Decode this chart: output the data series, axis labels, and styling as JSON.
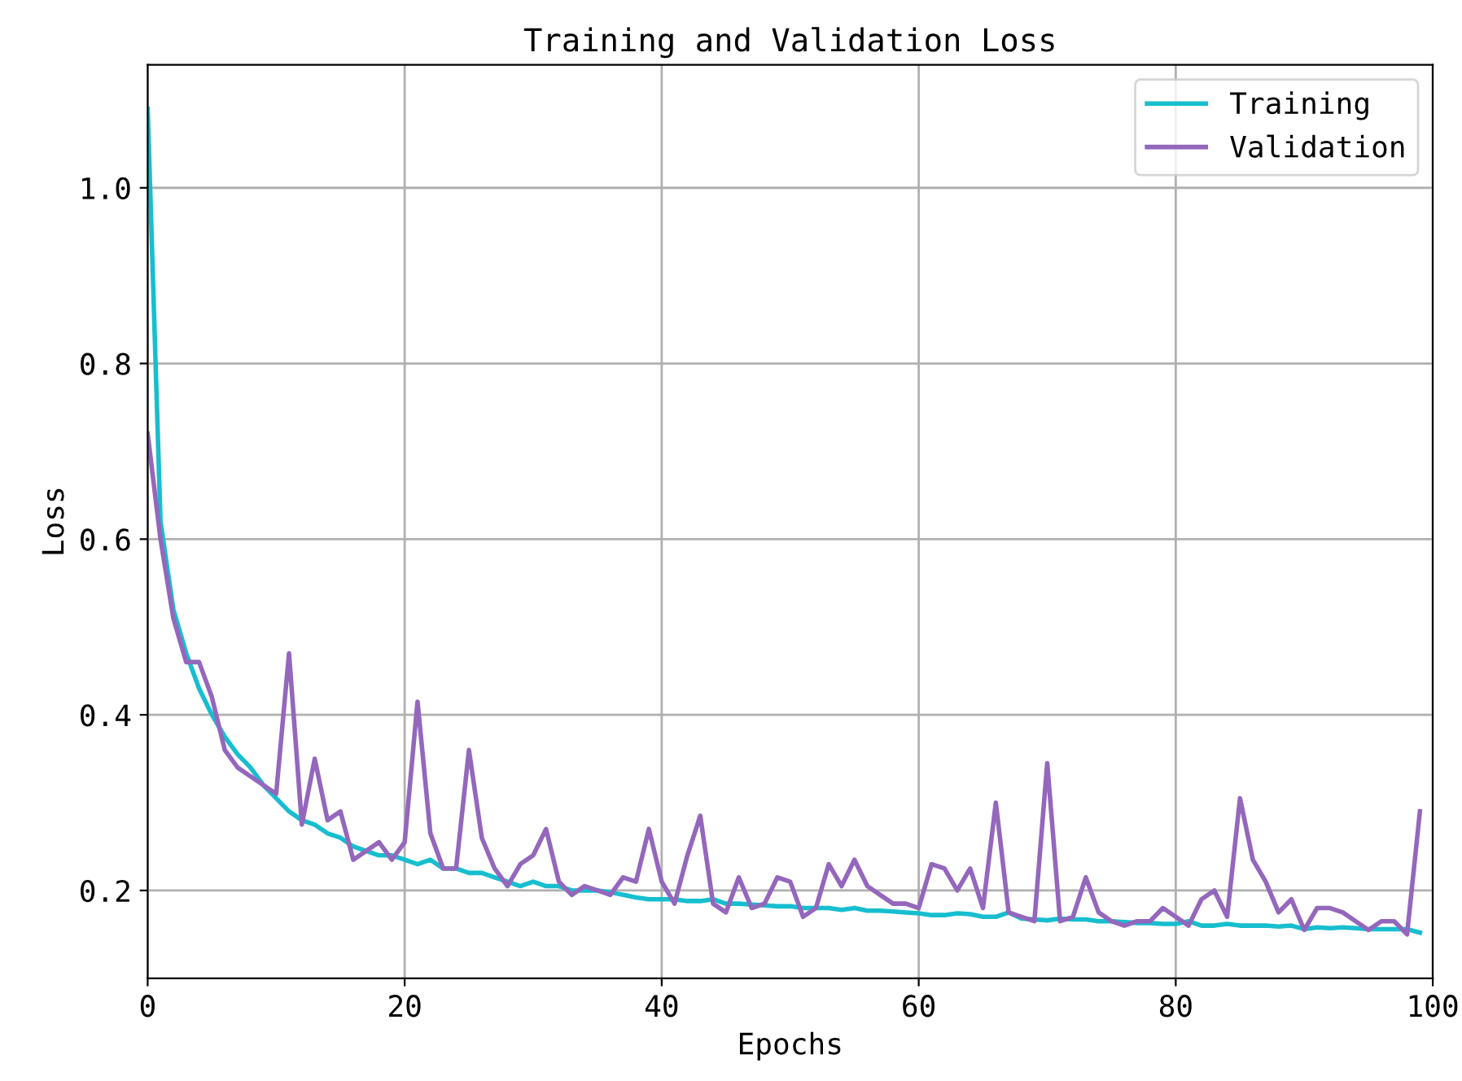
{
  "chart_data": {
    "type": "line",
    "title": "Training and Validation Loss",
    "xlabel": "Epochs",
    "ylabel": "Loss",
    "xlim": [
      0,
      100
    ],
    "xticks": [
      0,
      20,
      40,
      60,
      80,
      100
    ],
    "ylim": [
      0.1,
      1.14
    ],
    "yticks": [
      0.2,
      0.4,
      0.6,
      0.8,
      {
        "value": 1,
        "label": "1.0"
      }
    ],
    "x": [
      0,
      1,
      2,
      3,
      4,
      5,
      6,
      7,
      8,
      9,
      10,
      11,
      12,
      13,
      14,
      15,
      16,
      17,
      18,
      19,
      20,
      21,
      22,
      23,
      24,
      25,
      26,
      27,
      28,
      29,
      30,
      31,
      32,
      33,
      34,
      35,
      36,
      37,
      38,
      39,
      40,
      41,
      42,
      43,
      44,
      45,
      46,
      47,
      48,
      49,
      50,
      51,
      52,
      53,
      54,
      55,
      56,
      57,
      58,
      59,
      60,
      61,
      62,
      63,
      64,
      65,
      66,
      67,
      68,
      69,
      70,
      71,
      72,
      73,
      74,
      75,
      76,
      77,
      78,
      79,
      80,
      81,
      82,
      83,
      84,
      85,
      86,
      87,
      88,
      89,
      90,
      91,
      92,
      93,
      94,
      95,
      96,
      97,
      98,
      99
    ],
    "grid": true,
    "legend": "top right",
    "series": [
      {
        "name": "Training",
        "color": "#17becf",
        "values": [
          1.09,
          0.62,
          0.52,
          0.47,
          0.43,
          0.4,
          0.375,
          0.355,
          0.34,
          0.32,
          0.305,
          0.29,
          0.28,
          0.275,
          0.265,
          0.26,
          0.25,
          0.245,
          0.24,
          0.24,
          0.235,
          0.23,
          0.235,
          0.225,
          0.225,
          0.22,
          0.22,
          0.215,
          0.21,
          0.205,
          0.21,
          0.205,
          0.205,
          0.2,
          0.2,
          0.2,
          0.198,
          0.195,
          0.192,
          0.19,
          0.19,
          0.19,
          0.188,
          0.188,
          0.19,
          0.185,
          0.185,
          0.184,
          0.183,
          0.182,
          0.182,
          0.18,
          0.18,
          0.18,
          0.178,
          0.18,
          0.177,
          0.177,
          0.176,
          0.175,
          0.174,
          0.172,
          0.172,
          0.174,
          0.173,
          0.17,
          0.17,
          0.175,
          0.168,
          0.167,
          0.166,
          0.168,
          0.167,
          0.167,
          0.165,
          0.165,
          0.164,
          0.163,
          0.163,
          0.162,
          0.162,
          0.165,
          0.16,
          0.16,
          0.162,
          0.16,
          0.16,
          0.16,
          0.159,
          0.16,
          0.156,
          0.158,
          0.157,
          0.158,
          0.157,
          0.156,
          0.156,
          0.156,
          0.156,
          0.152
        ]
      },
      {
        "name": "Validation",
        "color": "#9467bd",
        "values": [
          0.72,
          0.6,
          0.51,
          0.46,
          0.46,
          0.42,
          0.36,
          0.34,
          0.33,
          0.32,
          0.31,
          0.47,
          0.275,
          0.35,
          0.28,
          0.29,
          0.235,
          0.245,
          0.255,
          0.235,
          0.255,
          0.415,
          0.265,
          0.225,
          0.225,
          0.36,
          0.26,
          0.225,
          0.205,
          0.23,
          0.24,
          0.27,
          0.21,
          0.195,
          0.205,
          0.2,
          0.195,
          0.215,
          0.21,
          0.27,
          0.21,
          0.185,
          0.24,
          0.285,
          0.185,
          0.175,
          0.215,
          0.18,
          0.185,
          0.215,
          0.21,
          0.17,
          0.18,
          0.23,
          0.205,
          0.235,
          0.205,
          0.195,
          0.185,
          0.185,
          0.18,
          0.23,
          0.225,
          0.2,
          0.225,
          0.18,
          0.3,
          0.175,
          0.17,
          0.165,
          0.345,
          0.165,
          0.17,
          0.215,
          0.175,
          0.165,
          0.16,
          0.165,
          0.165,
          0.18,
          0.17,
          0.16,
          0.19,
          0.2,
          0.17,
          0.305,
          0.235,
          0.21,
          0.175,
          0.19,
          0.155,
          0.18,
          0.18,
          0.175,
          0.165,
          0.155,
          0.165,
          0.165,
          0.15,
          0.29
        ]
      }
    ]
  }
}
